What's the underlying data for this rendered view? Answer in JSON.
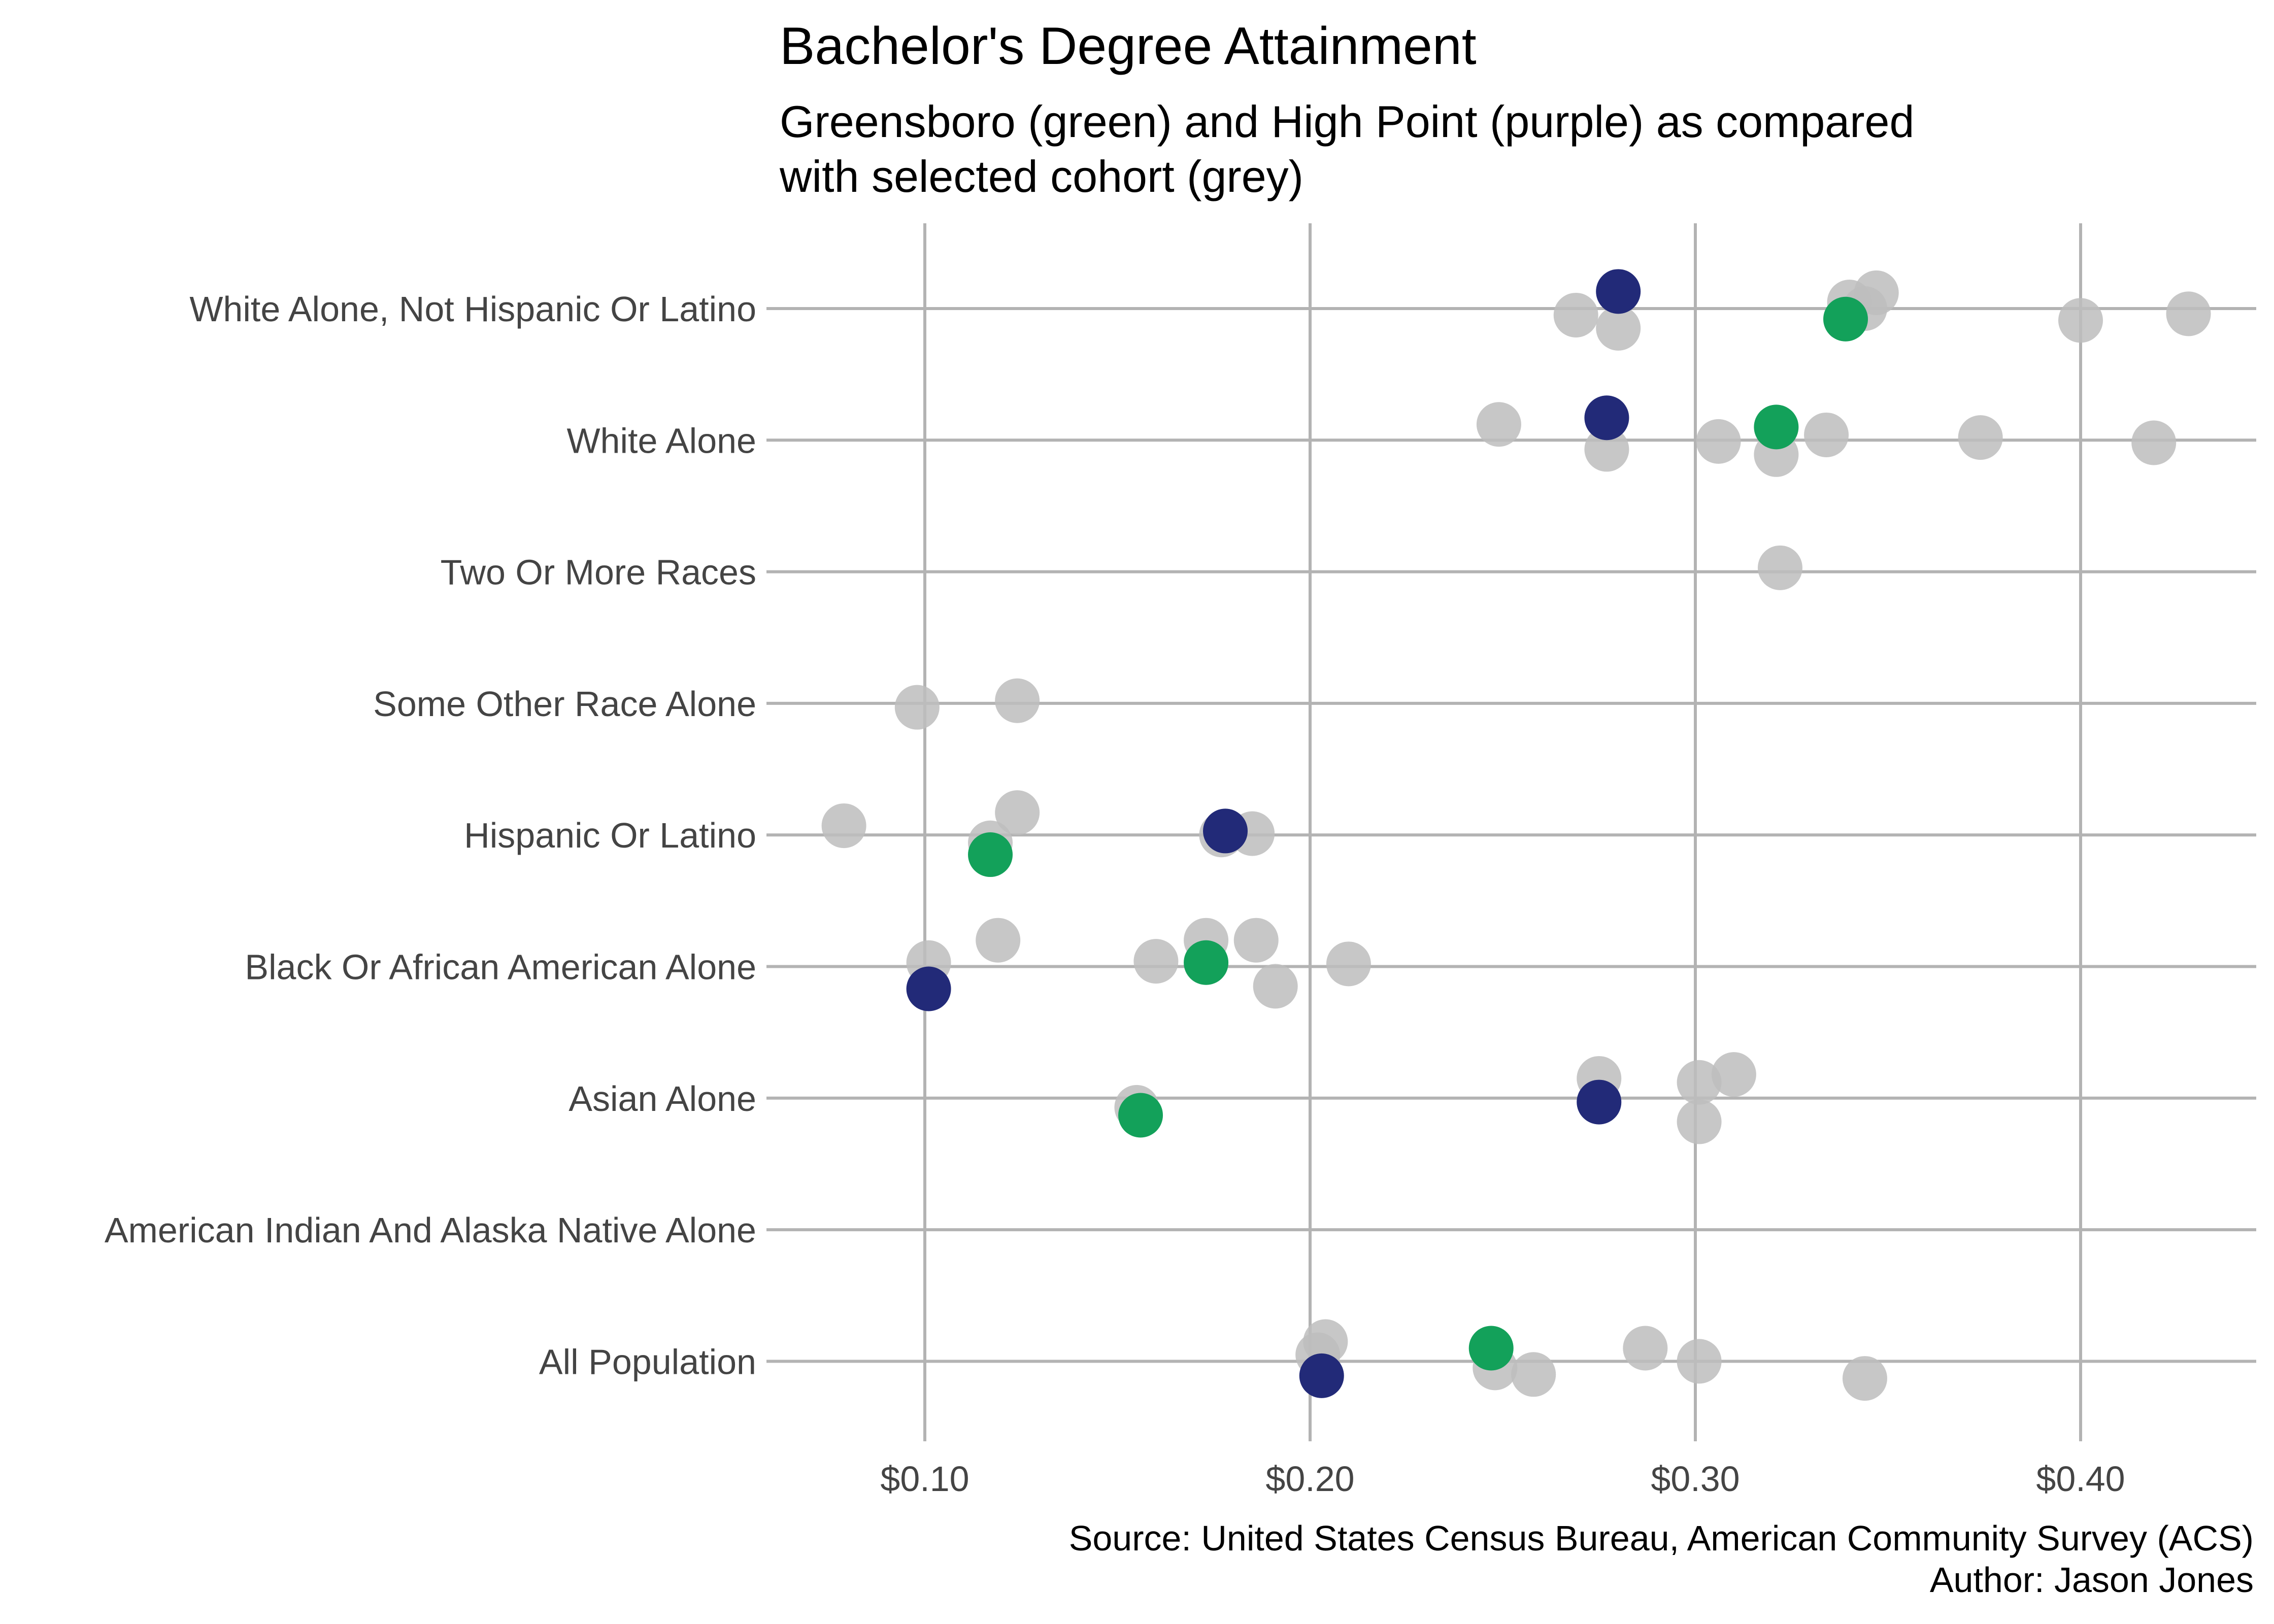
{
  "chart_data": {
    "type": "scatter",
    "title": "Bachelor's Degree Attainment",
    "subtitle": [
      "Greensboro (green) and High Point (purple) as compared",
      "with selected cohort (grey)"
    ],
    "caption": [
      "Source: United States Census Bureau, American Community Survey (ACS)",
      "Author: Jason Jones"
    ],
    "xlim": [
      0.06,
      0.445
    ],
    "x_ticks": [
      {
        "value": 0.1,
        "label": "$0.10"
      },
      {
        "value": 0.2,
        "label": "$0.20"
      },
      {
        "value": 0.3,
        "label": "$0.30"
      },
      {
        "value": 0.4,
        "label": "$0.40"
      }
    ],
    "categories": [
      "White Alone, Not Hispanic Or Latino",
      "White Alone",
      "Two Or More Races",
      "Some Other Race Alone",
      "Hispanic Or Latino",
      "Black Or African American Alone",
      "Asian Alone",
      "American Indian And Alaska Native Alone",
      "All Population"
    ],
    "colors": {
      "cohort": "#bdbdbd",
      "greensboro": "#13a15a",
      "high_point": "#222a78",
      "grid": "#b3b3b3"
    },
    "series": [
      {
        "group": "cohort",
        "points": [
          {
            "category": "White Alone, Not Hispanic Or Latino",
            "x": 0.269,
            "jitter": -0.05
          },
          {
            "category": "White Alone, Not Hispanic Or Latino",
            "x": 0.28,
            "jitter": -0.15
          },
          {
            "category": "White Alone, Not Hispanic Or Latino",
            "x": 0.34,
            "jitter": 0.05
          },
          {
            "category": "White Alone, Not Hispanic Or Latino",
            "x": 0.344,
            "jitter": 0.0
          },
          {
            "category": "White Alone, Not Hispanic Or Latino",
            "x": 0.347,
            "jitter": 0.12
          },
          {
            "category": "White Alone, Not Hispanic Or Latino",
            "x": 0.4,
            "jitter": -0.09
          },
          {
            "category": "White Alone, Not Hispanic Or Latino",
            "x": 0.428,
            "jitter": -0.04
          },
          {
            "category": "White Alone",
            "x": 0.249,
            "jitter": 0.12
          },
          {
            "category": "White Alone",
            "x": 0.277,
            "jitter": -0.07
          },
          {
            "category": "White Alone",
            "x": 0.306,
            "jitter": -0.01
          },
          {
            "category": "White Alone",
            "x": 0.321,
            "jitter": -0.11
          },
          {
            "category": "White Alone",
            "x": 0.334,
            "jitter": 0.04
          },
          {
            "category": "White Alone",
            "x": 0.374,
            "jitter": 0.02
          },
          {
            "category": "White Alone",
            "x": 0.419,
            "jitter": -0.02
          },
          {
            "category": "Two Or More Races",
            "x": 0.322,
            "jitter": 0.03
          },
          {
            "category": "Some Other Race Alone",
            "x": 0.098,
            "jitter": -0.03
          },
          {
            "category": "Some Other Race Alone",
            "x": 0.124,
            "jitter": 0.02
          },
          {
            "category": "Hispanic Or Latino",
            "x": 0.079,
            "jitter": 0.07
          },
          {
            "category": "Hispanic Or Latino",
            "x": 0.117,
            "jitter": -0.06
          },
          {
            "category": "Hispanic Or Latino",
            "x": 0.124,
            "jitter": 0.17
          },
          {
            "category": "Hispanic Or Latino",
            "x": 0.177,
            "jitter": 0.0
          },
          {
            "category": "Hispanic Or Latino",
            "x": 0.185,
            "jitter": 0.01
          },
          {
            "category": "Black Or African American Alone",
            "x": 0.101,
            "jitter": 0.03
          },
          {
            "category": "Black Or African American Alone",
            "x": 0.119,
            "jitter": 0.2
          },
          {
            "category": "Black Or African American Alone",
            "x": 0.16,
            "jitter": 0.04
          },
          {
            "category": "Black Or African American Alone",
            "x": 0.173,
            "jitter": 0.2
          },
          {
            "category": "Black Or African American Alone",
            "x": 0.186,
            "jitter": 0.2
          },
          {
            "category": "Black Or African American Alone",
            "x": 0.191,
            "jitter": -0.15
          },
          {
            "category": "Black Or African American Alone",
            "x": 0.21,
            "jitter": 0.02
          },
          {
            "category": "Asian Alone",
            "x": 0.155,
            "jitter": -0.07
          },
          {
            "category": "Asian Alone",
            "x": 0.275,
            "jitter": 0.15
          },
          {
            "category": "Asian Alone",
            "x": 0.301,
            "jitter": 0.12
          },
          {
            "category": "Asian Alone",
            "x": 0.301,
            "jitter": -0.18
          },
          {
            "category": "Asian Alone",
            "x": 0.31,
            "jitter": 0.18
          },
          {
            "category": "All Population",
            "x": 0.202,
            "jitter": 0.05
          },
          {
            "category": "All Population",
            "x": 0.204,
            "jitter": 0.15
          },
          {
            "category": "All Population",
            "x": 0.248,
            "jitter": -0.05
          },
          {
            "category": "All Population",
            "x": 0.258,
            "jitter": -0.1
          },
          {
            "category": "All Population",
            "x": 0.287,
            "jitter": 0.1
          },
          {
            "category": "All Population",
            "x": 0.301,
            "jitter": 0.0
          },
          {
            "category": "All Population",
            "x": 0.344,
            "jitter": -0.13
          }
        ]
      },
      {
        "group": "greensboro",
        "points": [
          {
            "category": "White Alone, Not Hispanic Or Latino",
            "x": 0.339,
            "jitter": -0.08
          },
          {
            "category": "White Alone",
            "x": 0.321,
            "jitter": 0.1
          },
          {
            "category": "Hispanic Or Latino",
            "x": 0.117,
            "jitter": -0.15
          },
          {
            "category": "Black Or African American Alone",
            "x": 0.173,
            "jitter": 0.03
          },
          {
            "category": "Asian Alone",
            "x": 0.156,
            "jitter": -0.13
          },
          {
            "category": "All Population",
            "x": 0.247,
            "jitter": 0.1
          }
        ]
      },
      {
        "group": "high_point",
        "points": [
          {
            "category": "White Alone, Not Hispanic Or Latino",
            "x": 0.28,
            "jitter": 0.13
          },
          {
            "category": "White Alone",
            "x": 0.277,
            "jitter": 0.17
          },
          {
            "category": "Hispanic Or Latino",
            "x": 0.178,
            "jitter": 0.03
          },
          {
            "category": "Black Or African American Alone",
            "x": 0.101,
            "jitter": -0.17
          },
          {
            "category": "Asian Alone",
            "x": 0.275,
            "jitter": -0.03
          },
          {
            "category": "All Population",
            "x": 0.203,
            "jitter": -0.11
          }
        ]
      }
    ]
  }
}
